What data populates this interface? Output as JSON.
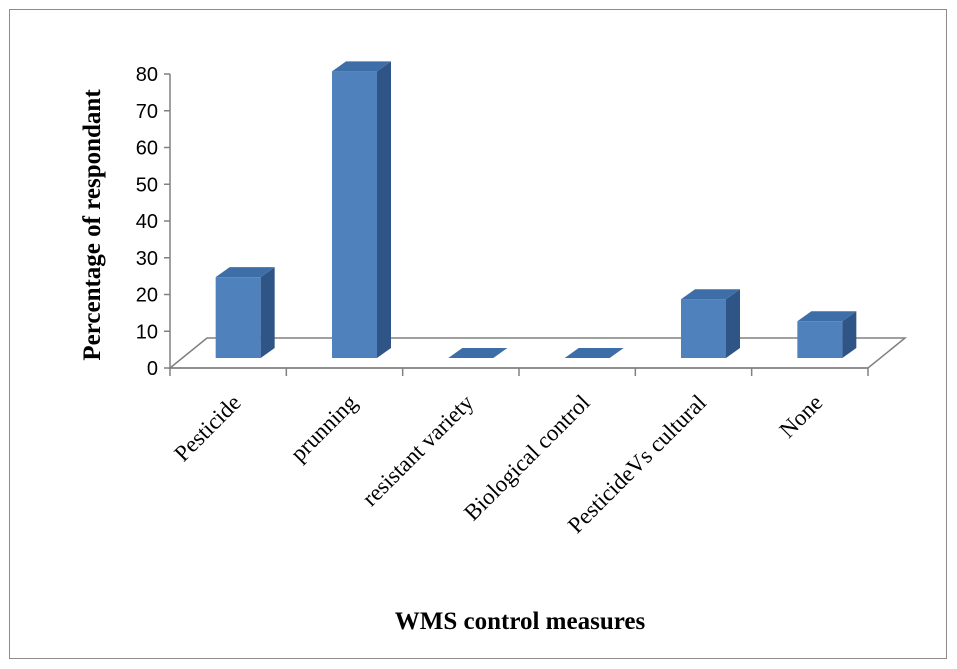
{
  "chart_data": {
    "type": "bar",
    "title": "",
    "xlabel": "WMS control measures",
    "ylabel": "Percentage of respondant",
    "categories": [
      "Pesticide",
      "prunning",
      "resistant variety",
      "Biological control",
      "PesticideVs cultural",
      "None"
    ],
    "values": [
      22,
      78,
      0,
      0,
      16,
      10
    ],
    "ylim": [
      0,
      80
    ],
    "yticks": [
      "0",
      "10",
      "20",
      "30",
      "40",
      "50",
      "60",
      "70",
      "80"
    ],
    "grid": false,
    "legend": "none",
    "colors": {
      "bar_front": "#4f81bd",
      "bar_side": "#2e5585",
      "bar_top": "#3d6ea8",
      "floor": "#808080"
    }
  }
}
